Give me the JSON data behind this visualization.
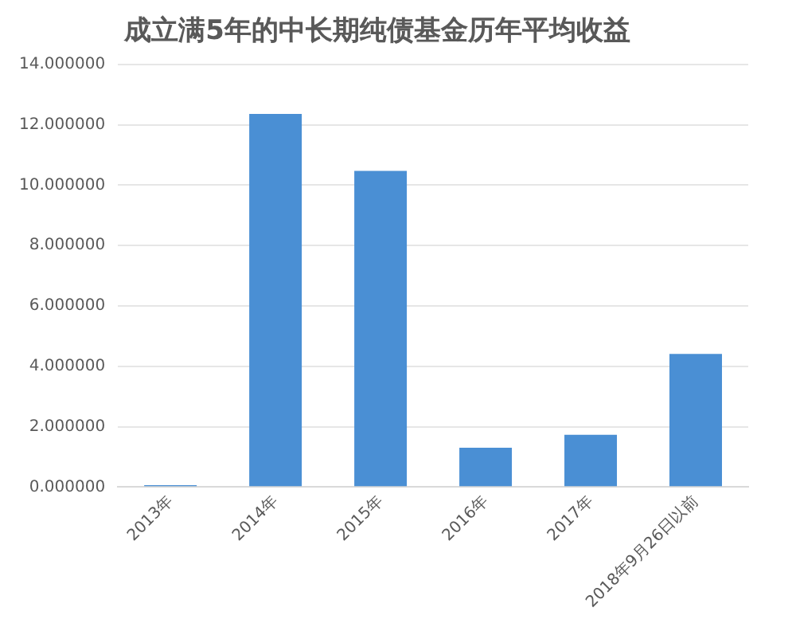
{
  "chart_data": {
    "type": "bar",
    "title": "成立满5年的中长期纯债基金历年平均收益",
    "categories": [
      "2013年",
      "2014年",
      "2015年",
      "2016年",
      "2017年",
      "2018年9月26日以前"
    ],
    "values": [
      0.06,
      12.36,
      10.47,
      1.3,
      1.73,
      4.41
    ],
    "color": "#4a8fd4",
    "ylim": [
      0,
      14
    ],
    "yticks": [
      {
        "value": 0,
        "label": "0.000000"
      },
      {
        "value": 2,
        "label": "2.000000"
      },
      {
        "value": 4,
        "label": "4.000000"
      },
      {
        "value": 6,
        "label": "6.000000"
      },
      {
        "value": 8,
        "label": "8.000000"
      },
      {
        "value": 10,
        "label": "10.000000"
      },
      {
        "value": 12,
        "label": "12.000000"
      },
      {
        "value": 14,
        "label": "14.000000"
      }
    ],
    "grid": "y"
  }
}
